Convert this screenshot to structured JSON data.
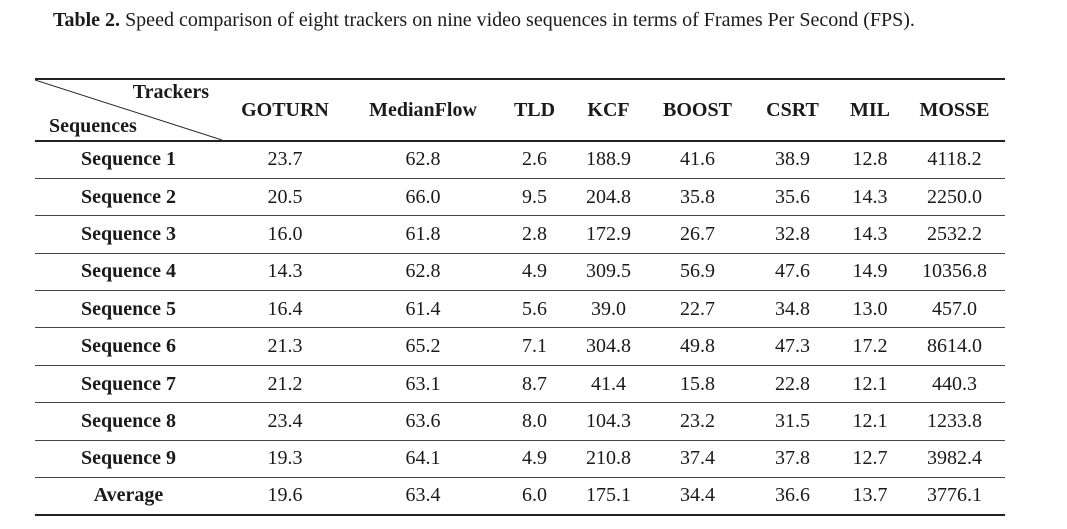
{
  "caption": {
    "label": "Table 2.",
    "text": " Speed comparison of eight trackers on nine video sequences in terms of Frames Per Second (FPS)."
  },
  "table": {
    "corner_top": "Trackers",
    "corner_bottom": "Sequences",
    "columns": [
      "GOTURN",
      "MedianFlow",
      "TLD",
      "KCF",
      "BOOST",
      "CSRT",
      "MIL",
      "MOSSE"
    ],
    "rows": [
      {
        "label": "Sequence 1",
        "values": [
          "23.7",
          "62.8",
          "2.6",
          "188.9",
          "41.6",
          "38.9",
          "12.8",
          "4118.2"
        ]
      },
      {
        "label": "Sequence 2",
        "values": [
          "20.5",
          "66.0",
          "9.5",
          "204.8",
          "35.8",
          "35.6",
          "14.3",
          "2250.0"
        ]
      },
      {
        "label": "Sequence 3",
        "values": [
          "16.0",
          "61.8",
          "2.8",
          "172.9",
          "26.7",
          "32.8",
          "14.3",
          "2532.2"
        ]
      },
      {
        "label": "Sequence 4",
        "values": [
          "14.3",
          "62.8",
          "4.9",
          "309.5",
          "56.9",
          "47.6",
          "14.9",
          "10356.8"
        ]
      },
      {
        "label": "Sequence 5",
        "values": [
          "16.4",
          "61.4",
          "5.6",
          "39.0",
          "22.7",
          "34.8",
          "13.0",
          "457.0"
        ]
      },
      {
        "label": "Sequence 6",
        "values": [
          "21.3",
          "65.2",
          "7.1",
          "304.8",
          "49.8",
          "47.3",
          "17.2",
          "8614.0"
        ]
      },
      {
        "label": "Sequence 7",
        "values": [
          "21.2",
          "63.1",
          "8.7",
          "41.4",
          "15.8",
          "22.8",
          "12.1",
          "440.3"
        ]
      },
      {
        "label": "Sequence 8",
        "values": [
          "23.4",
          "63.6",
          "8.0",
          "104.3",
          "23.2",
          "31.5",
          "12.1",
          "1233.8"
        ]
      },
      {
        "label": "Sequence 9",
        "values": [
          "19.3",
          "64.1",
          "4.9",
          "210.8",
          "37.4",
          "37.8",
          "12.7",
          "3982.4"
        ]
      },
      {
        "label": "Average",
        "values": [
          "19.6",
          "63.4",
          "6.0",
          "175.1",
          "34.4",
          "36.6",
          "13.7",
          "3776.1"
        ]
      }
    ]
  }
}
